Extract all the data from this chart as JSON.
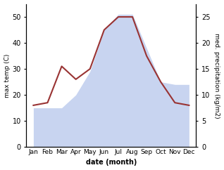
{
  "months": [
    "Jan",
    "Feb",
    "Mar",
    "Apr",
    "May",
    "Jun",
    "Jul",
    "Aug",
    "Sep",
    "Oct",
    "Nov",
    "Dec"
  ],
  "month_positions": [
    1,
    2,
    3,
    4,
    5,
    6,
    7,
    8,
    9,
    10,
    11,
    12
  ],
  "temperature": [
    16,
    17,
    31,
    26,
    30,
    45,
    50,
    50,
    35,
    25,
    17,
    16
  ],
  "precipitation": [
    7.5,
    7.5,
    7.5,
    10,
    14.5,
    22.5,
    25.5,
    25.5,
    19,
    12.5,
    12,
    12
  ],
  "temp_color": "#993333",
  "precip_color": "#c8d4f0",
  "ylim_left": [
    0,
    55
  ],
  "ylim_right": [
    0,
    27.5
  ],
  "yticks_left": [
    0,
    10,
    20,
    30,
    40,
    50
  ],
  "yticks_right": [
    0,
    5,
    10,
    15,
    20,
    25
  ],
  "xlabel": "date (month)",
  "ylabel_left": "max temp (C)",
  "ylabel_right": "med. precipitation (kg/m2)",
  "bg_color": "#ffffff",
  "fig_width": 3.18,
  "fig_height": 2.42,
  "dpi": 100
}
